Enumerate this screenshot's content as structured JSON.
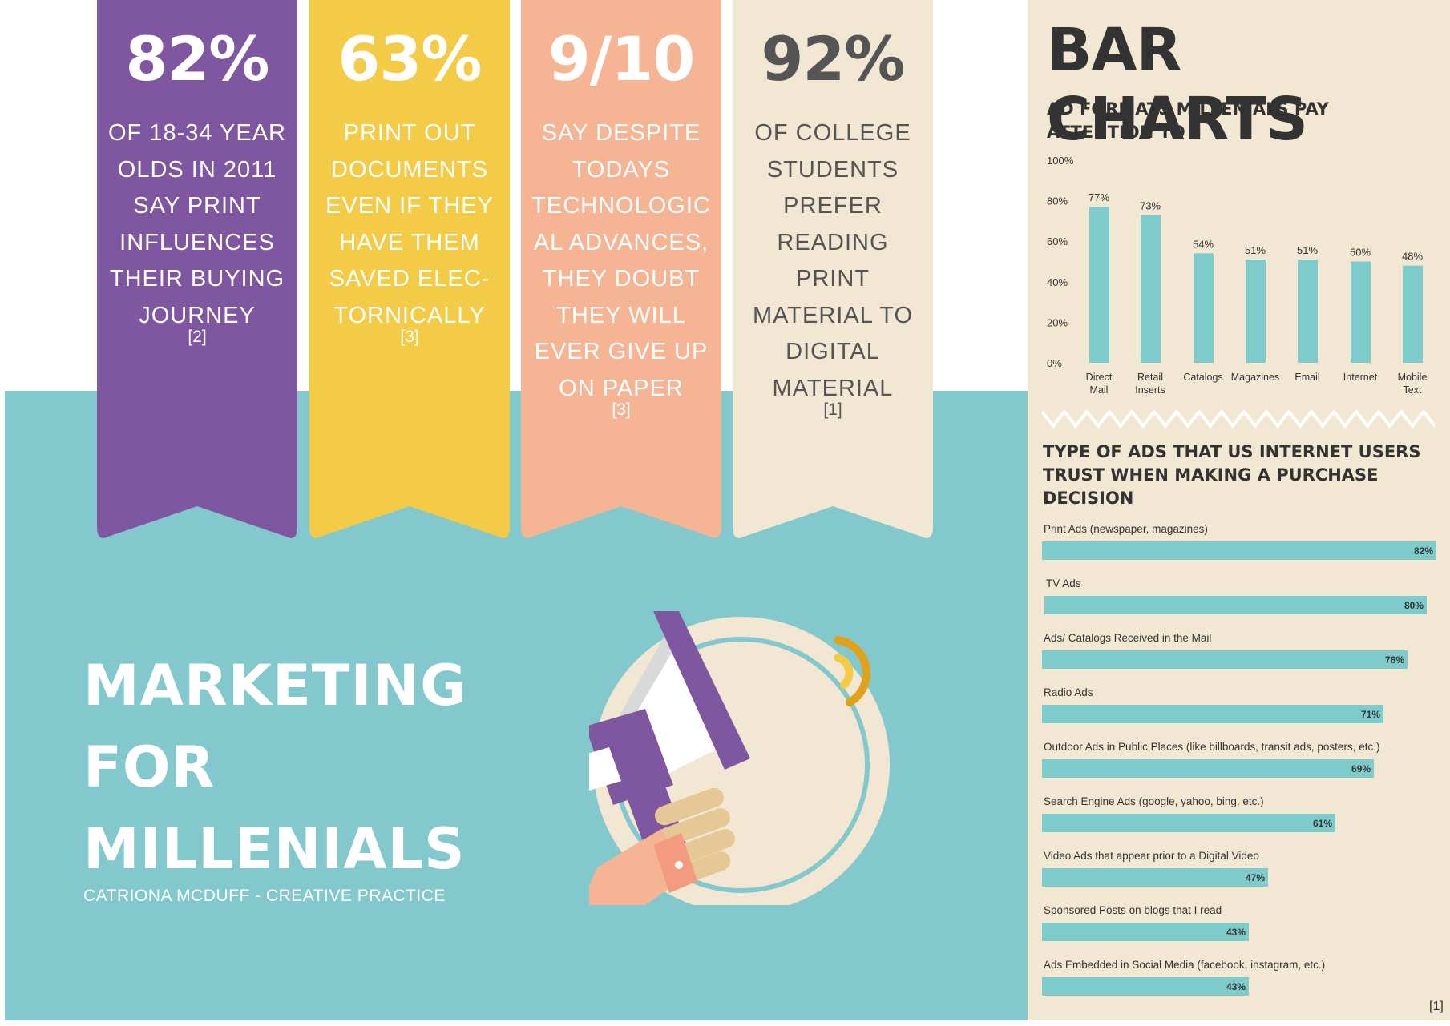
{
  "ribbons": [
    {
      "big": "82%",
      "text": "OF 18-34 YEAR OLDS IN 2011 SAY PRINT INFLUENCES THEIR BUYING JOURNEY",
      "ref": "[2]",
      "bg": "#7E57A0",
      "color": "#ffffff"
    },
    {
      "big": "63%",
      "text": "PRINT OUT DOCUMENTS EVEN IF THEY HAVE THEM SAVED ELEC- TORNICALLY",
      "ref": "[3]",
      "bg": "#F4CB47",
      "color": "#ffffff"
    },
    {
      "big": "9/10",
      "text": "SAY DESPITE TODAYS TECHNOLOGIC AL ADVANCES, THEY DOUBT THEY WILL EVER GIVE UP ON PAPER",
      "ref": "[3]",
      "bg": "#F5B595",
      "color": "#ffffff"
    },
    {
      "big": "92%",
      "text": "OF COLLEGE STUDENTS PREFER READING PRINT MATERIAL TO DIGITAL MATERIAL",
      "ref": "[1]",
      "bg": "#F2E7D2",
      "color": "#555555"
    }
  ],
  "main": {
    "title_lines": [
      "MARKETING",
      "FOR",
      "MILLENIALS"
    ],
    "subtitle": "CATRIONA MCDUFF - CREATIVE PRACTICE"
  },
  "sidebar": {
    "title": "BAR CHARTS",
    "chart1_title": [
      "AD FORMATS MILLENIALS PAY",
      "ATTENTION TO"
    ],
    "chart2_title": [
      "TYPE OF ADS THAT US INTERNET USERS",
      "TRUST WHEN MAKING A PURCHASE",
      "DECISION"
    ],
    "footnote": "[1]"
  },
  "colors": {
    "teal": "#82C8CD",
    "bar": "#7ECBCB",
    "cream": "#F2E7D2",
    "dark": "#333333"
  },
  "icons": [
    "megaphone-icon",
    "zigzag-divider"
  ],
  "chart_data": [
    {
      "type": "bar",
      "title": "AD FORMATS MILLENIALS PAY ATTENTION TO",
      "categories": [
        "Direct Mail",
        "Retail Inserts",
        "Catalogs",
        "Magazines",
        "Email",
        "Internet",
        "Mobile Text"
      ],
      "category_lines": [
        [
          "Direct",
          "Mail"
        ],
        [
          "Retail",
          "Inserts"
        ],
        [
          "Catalogs"
        ],
        [
          "Magazines"
        ],
        [
          "Email"
        ],
        [
          "Internet"
        ],
        [
          "Mobile",
          "Text"
        ]
      ],
      "values": [
        77,
        73,
        54,
        51,
        51,
        50,
        48
      ],
      "value_labels": [
        "77%",
        "73%",
        "54%",
        "51%",
        "51%",
        "50%",
        "48%"
      ],
      "yticks": [
        "0%",
        "20%",
        "40%",
        "60%",
        "80%",
        "100%"
      ],
      "ylim": [
        0,
        100
      ],
      "grid": false
    },
    {
      "type": "bar",
      "orientation": "horizontal",
      "title": "TYPE OF ADS THAT US INTERNET USERS TRUST WHEN MAKING A PURCHASE DECISION",
      "categories": [
        "Print Ads (newspaper, magazines)",
        "TV Ads",
        "Ads/ Catalogs Received in the Mail",
        "Radio Ads",
        "Outdoor Ads in Public Places (like billboards, transit ads, posters, etc.)",
        "Search Engine Ads (google, yahoo, bing, etc.)",
        "Video Ads that appear prior to a Digital Video",
        "Sponsored Posts on blogs that I read",
        "Ads Embedded in Social Media (facebook, instagram, etc.)"
      ],
      "values": [
        82,
        80,
        76,
        71,
        69,
        61,
        47,
        43,
        43
      ],
      "value_labels": [
        "82%",
        "80%",
        "76%",
        "71%",
        "69%",
        "61%",
        "47%",
        "43%",
        "43%"
      ],
      "xlim": [
        0,
        82
      ],
      "grid": false
    }
  ]
}
